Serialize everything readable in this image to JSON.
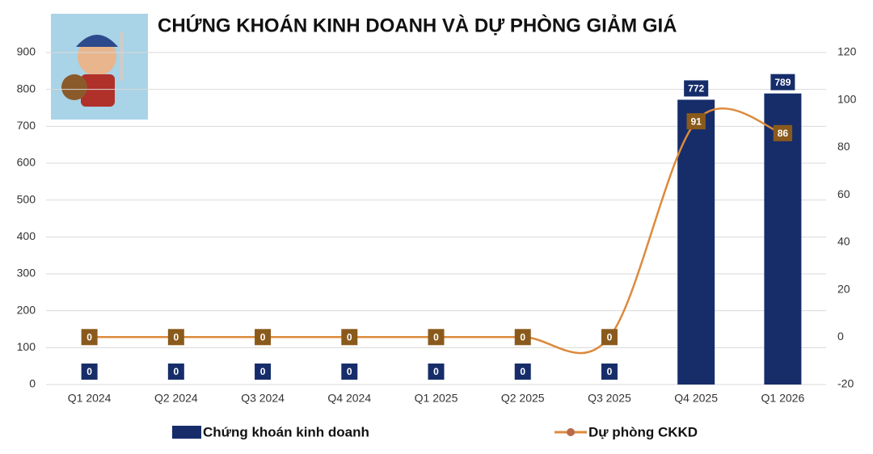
{
  "chart_data": {
    "type": "combo",
    "title": "CHỨNG KHOÁN KINH DOANH VÀ DỰ PHÒNG GIẢM GIÁ",
    "categories": [
      "Q1 2024",
      "Q2 2024",
      "Q3 2024",
      "Q4 2024",
      "Q1 2025",
      "Q2 2025",
      "Q3 2025",
      "Q4 2025",
      "Q1 2026"
    ],
    "series": [
      {
        "name": "Chứng khoán kinh doanh",
        "type": "bar",
        "color": "#162d6a",
        "values": [
          0,
          0,
          0,
          0,
          0,
          0,
          0,
          772,
          789
        ]
      },
      {
        "name": "Dự phòng CKKD",
        "type": "line",
        "axis": "y2",
        "color": "#dc8a3c",
        "values": [
          0,
          0,
          0,
          0,
          0,
          0,
          0,
          91,
          86
        ]
      }
    ],
    "ylim": [
      0,
      900
    ],
    "yticks": [
      0,
      100,
      200,
      300,
      400,
      500,
      600,
      700,
      800,
      900
    ],
    "y2lim": [
      -20,
      120
    ],
    "y2ticks": [
      -20,
      0,
      20,
      40,
      60,
      80,
      100,
      120
    ],
    "grid": true
  }
}
